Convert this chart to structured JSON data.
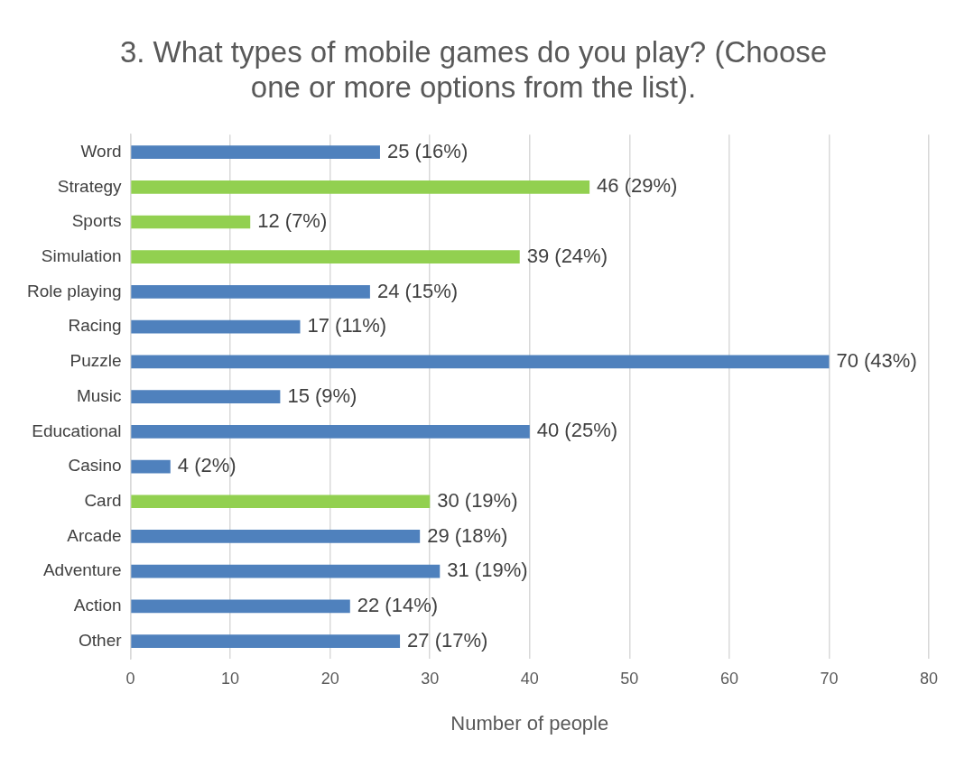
{
  "chart_data": {
    "type": "bar",
    "orientation": "horizontal",
    "title": "3. What types of mobile games do you play? (Choose one or more options from the list).",
    "xlabel": "Number of people",
    "categories": [
      "Word",
      "Strategy",
      "Sports",
      "Simulation",
      "Role playing",
      "Racing",
      "Puzzle",
      "Music",
      "Educational",
      "Casino",
      "Card",
      "Arcade",
      "Adventure",
      "Action",
      "Other"
    ],
    "values": [
      25,
      46,
      12,
      39,
      24,
      17,
      70,
      15,
      40,
      4,
      30,
      29,
      31,
      22,
      27
    ],
    "colors": [
      "#4f81bd",
      "#92d050",
      "#92d050",
      "#92d050",
      "#4f81bd",
      "#4f81bd",
      "#4f81bd",
      "#4f81bd",
      "#4f81bd",
      "#4f81bd",
      "#92d050",
      "#4f81bd",
      "#4f81bd",
      "#4f81bd",
      "#4f81bd"
    ],
    "value_labels": [
      "25 (16%)",
      "46 (29%)",
      "12 (7%)",
      "39 (24%)",
      "24 (15%)",
      "17 (11%)",
      "70 (43%)",
      "15 (9%)",
      "40 (25%)",
      "4 (2%)",
      "30 (19%)",
      "29 (18%)",
      "31 (19%)",
      "22 (14%)",
      "27 (17%)"
    ],
    "xlim": [
      0,
      80
    ],
    "xticks": [
      0,
      10,
      20,
      30,
      40,
      50,
      60,
      70,
      80
    ],
    "grid": "x"
  }
}
